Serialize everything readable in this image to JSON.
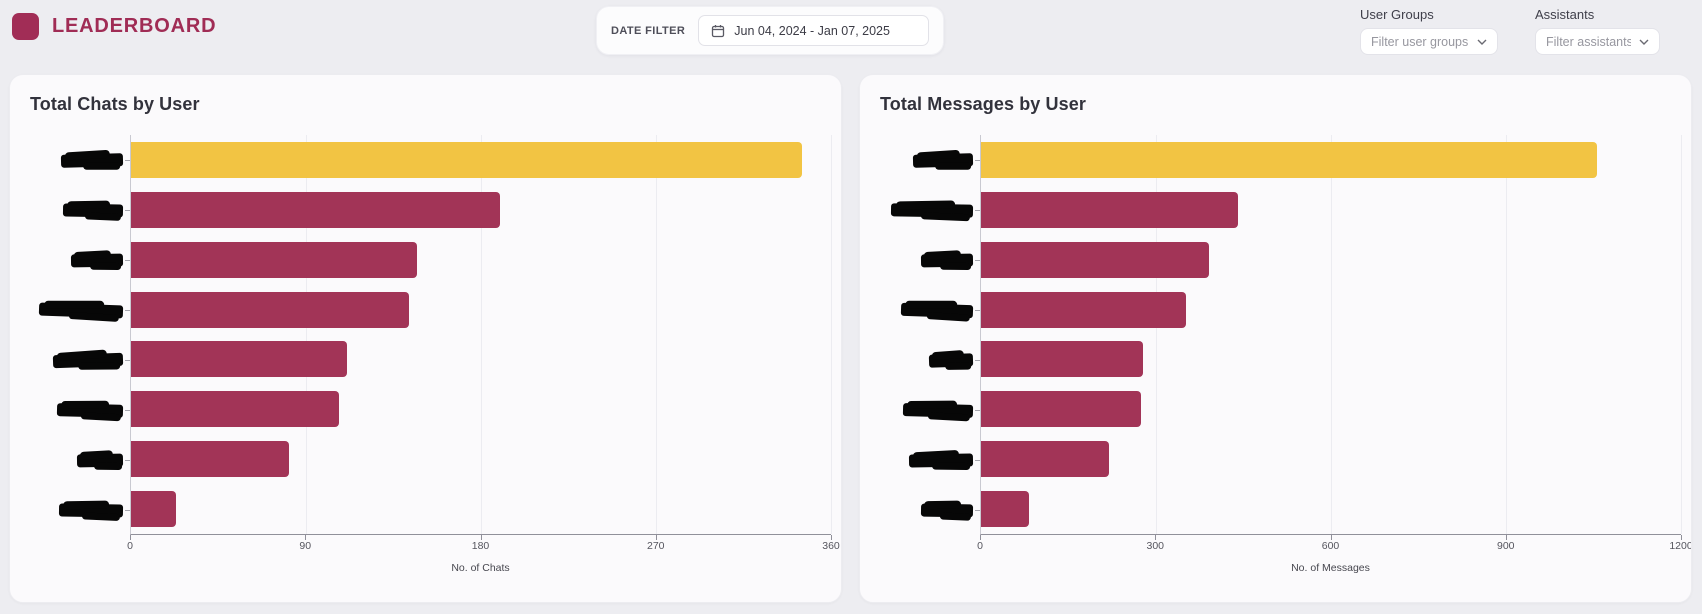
{
  "header": {
    "title": "LEADERBOARD"
  },
  "date_filter": {
    "label": "DATE FILTER",
    "value": "Jun 04, 2024 - Jan 07, 2025",
    "icon": "calendar-icon"
  },
  "filters": {
    "user_groups": {
      "label": "User Groups",
      "placeholder": "Filter user groups..."
    },
    "assistants": {
      "label": "Assistants",
      "placeholder": "Filter assistants..."
    }
  },
  "colors": {
    "brand": "#A02C55",
    "page_bg": "#EDEDF1",
    "card_bg": "#FBFAFC",
    "bar": "#A23457",
    "top_bar": "#F2C443",
    "redaction": "#070707"
  },
  "chart_data": [
    {
      "type": "bar",
      "orientation": "horizontal",
      "title": "Total Chats by User",
      "xlabel": "No. of Chats",
      "xlim": [
        0,
        360
      ],
      "xticks": [
        0,
        90,
        180,
        270,
        360
      ],
      "grid": true,
      "legend": false,
      "categories": [
        "(redacted)",
        "(redacted)",
        "(redacted)",
        "(redacted)",
        "(redacted)",
        "(redacted)",
        "(redacted)",
        "(redacted)"
      ],
      "values": [
        345,
        190,
        147,
        143,
        111,
        107,
        81,
        23
      ],
      "bar_color": "#A23457",
      "top_bar_color": "#F2C443",
      "label_mask_widths": [
        62,
        60,
        52,
        84,
        70,
        66,
        46,
        64
      ]
    },
    {
      "type": "bar",
      "orientation": "horizontal",
      "title": "Total Messages by User",
      "xlabel": "No. of Messages",
      "xlim": [
        0,
        1200
      ],
      "xticks": [
        0,
        300,
        600,
        900,
        1200
      ],
      "grid": true,
      "legend": false,
      "categories": [
        "(redacted)",
        "(redacted)",
        "(redacted)",
        "(redacted)",
        "(redacted)",
        "(redacted)",
        "(redacted)",
        "(redacted)"
      ],
      "values": [
        1056,
        440,
        390,
        352,
        278,
        275,
        220,
        82
      ],
      "bar_color": "#A23457",
      "top_bar_color": "#F2C443",
      "label_mask_widths": [
        60,
        82,
        52,
        72,
        44,
        70,
        64,
        52
      ]
    }
  ]
}
